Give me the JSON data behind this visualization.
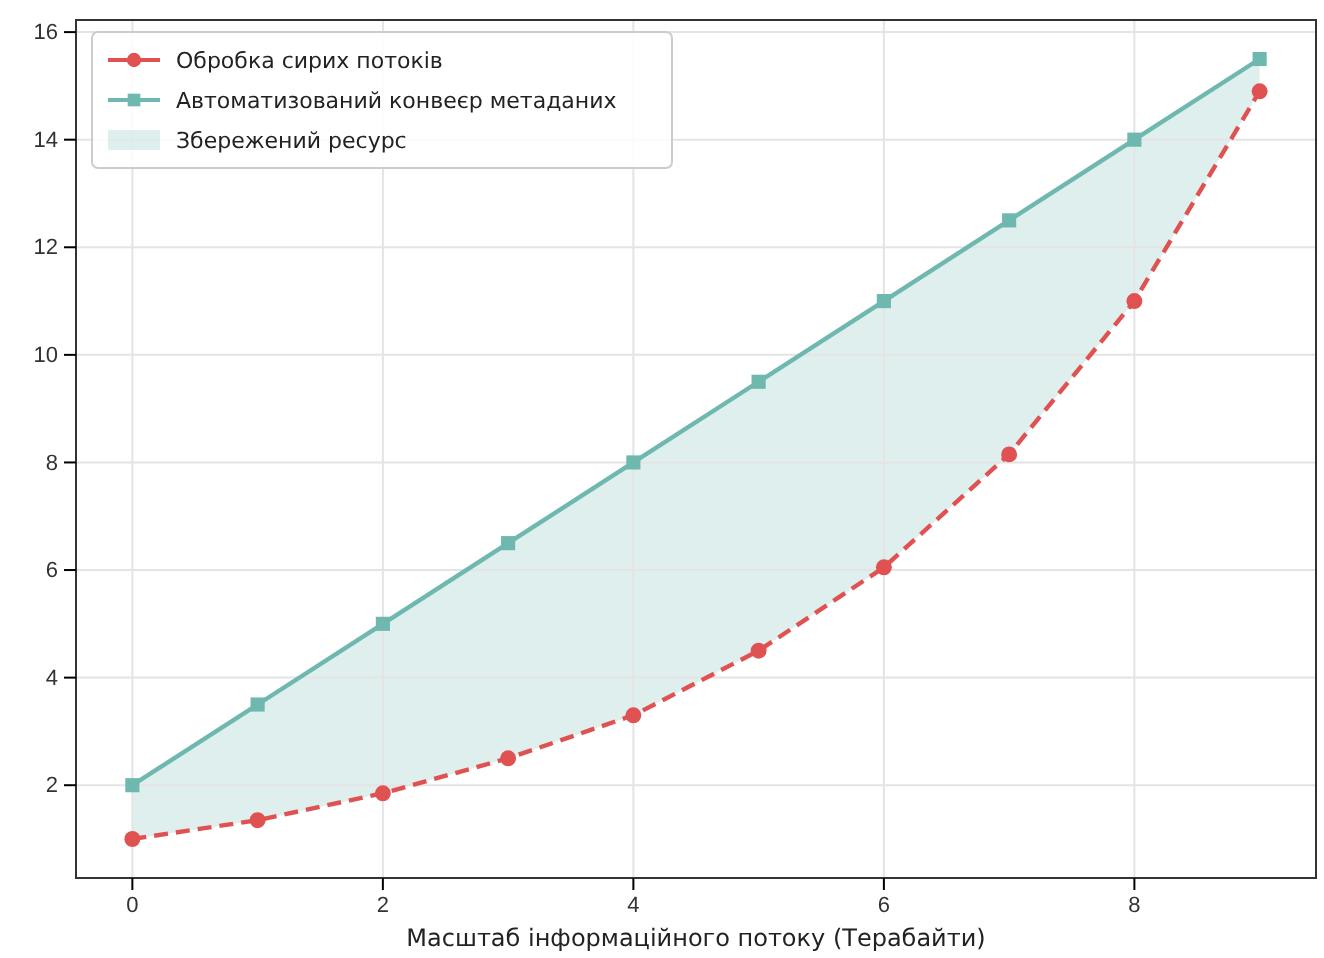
{
  "chart_data": {
    "type": "line",
    "xlabel": "Масштаб інформаційного потоку (Терабайти)",
    "x": [
      0,
      1,
      2,
      3,
      4,
      5,
      6,
      7,
      8,
      9
    ],
    "series": [
      {
        "name": "Обробка сирих потоків",
        "color": "#e05252",
        "values": [
          1.0,
          1.35,
          1.85,
          2.5,
          3.3,
          4.5,
          6.05,
          8.15,
          11.0,
          14.9
        ],
        "marker": "circle",
        "line_style": "dashed"
      },
      {
        "name": "Автоматизований конвеєр метаданих",
        "color": "#6fb8b0",
        "values": [
          2,
          3.5,
          5,
          6.5,
          8,
          9.5,
          11,
          12.5,
          14,
          15.5
        ],
        "marker": "square",
        "line_style": "solid",
        "lower": [
          1.0,
          1.35,
          1.85,
          2.5,
          3.3,
          4.5,
          6.05,
          8.15,
          11.0,
          14.9
        ],
        "upper": [
          2,
          3.5,
          5,
          6.5,
          8,
          9.5,
          11,
          12.5,
          14,
          15.5
        ]
      }
    ],
    "annotations": [
      "Збережений ресурс"
    ],
    "xlim": [
      -0.45,
      9.45
    ],
    "xticks": [
      0,
      2,
      4,
      6,
      8
    ],
    "ylim": [
      0.275,
      16.225
    ],
    "yticks": [
      2,
      4,
      6,
      8,
      10,
      12,
      14,
      16
    ],
    "grid": true,
    "legend": "top left"
  }
}
